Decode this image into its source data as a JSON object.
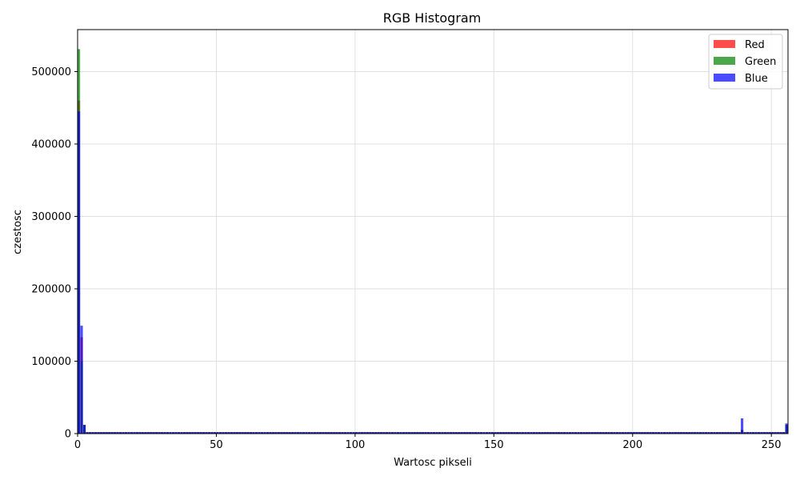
{
  "chart_data": {
    "type": "bar",
    "title": "RGB Histogram",
    "xlabel": "Wartosc pikseli",
    "ylabel": "czestosc",
    "xlim": [
      0,
      256
    ],
    "ylim": [
      0,
      558000
    ],
    "xticks": [
      0,
      50,
      100,
      150,
      200,
      250
    ],
    "yticks": [
      0,
      100000,
      200000,
      300000,
      400000,
      500000
    ],
    "grid": true,
    "legend_position": "top-right",
    "baseline": 2000,
    "series": [
      {
        "name": "Red",
        "color": "#ff0000",
        "opacity": 0.7,
        "spikes": [
          [
            0,
            460000
          ],
          [
            1,
            133000
          ],
          [
            2,
            12000
          ],
          [
            239,
            5000
          ],
          [
            255,
            12000
          ]
        ]
      },
      {
        "name": "Green",
        "color": "#008000",
        "opacity": 0.7,
        "spikes": [
          [
            0,
            531000
          ],
          [
            1,
            100000
          ],
          [
            2,
            12000
          ],
          [
            239,
            5000
          ],
          [
            255,
            12000
          ]
        ]
      },
      {
        "name": "Blue",
        "color": "#0000ff",
        "opacity": 0.7,
        "spikes": [
          [
            0,
            445000
          ],
          [
            1,
            149000
          ],
          [
            2,
            12000
          ],
          [
            239,
            21000
          ],
          [
            255,
            14000
          ]
        ]
      }
    ]
  }
}
